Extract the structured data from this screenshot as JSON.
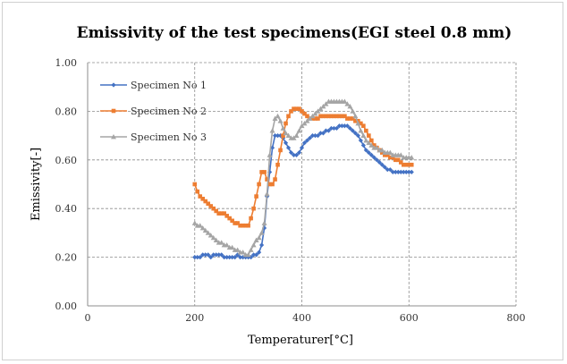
{
  "chart_data": {
    "type": "line",
    "title": "Emissivity of the test specimens(EGI steel 0.8 mm)",
    "xlabel": "Temperaturer[°C]",
    "ylabel": "Emissivity[-]",
    "xlim": [
      0,
      800
    ],
    "ylim": [
      0.0,
      1.0
    ],
    "x_ticks": [
      "0",
      "200",
      "400",
      "600",
      "800"
    ],
    "y_ticks": [
      "0.00",
      "0.20",
      "0.40",
      "0.60",
      "0.80",
      "1.00"
    ],
    "grid": true,
    "legend_position": "top-left",
    "series": [
      {
        "name": "Specimen No 1",
        "color": "#4472C4",
        "marker": "diamond",
        "x": [
          200,
          205,
          210,
          215,
          220,
          225,
          230,
          235,
          240,
          245,
          250,
          255,
          260,
          265,
          270,
          275,
          280,
          285,
          290,
          295,
          300,
          305,
          310,
          315,
          320,
          325,
          330,
          335,
          340,
          345,
          350,
          355,
          360,
          365,
          370,
          375,
          380,
          385,
          390,
          395,
          400,
          405,
          410,
          415,
          420,
          425,
          430,
          435,
          440,
          445,
          450,
          455,
          460,
          465,
          470,
          475,
          480,
          485,
          490,
          495,
          500,
          505,
          510,
          515,
          520,
          525,
          530,
          535,
          540,
          545,
          550,
          555,
          560,
          565,
          570,
          575,
          580,
          585,
          590,
          595,
          600,
          605
        ],
        "y": [
          0.2,
          0.2,
          0.2,
          0.21,
          0.21,
          0.21,
          0.2,
          0.21,
          0.21,
          0.21,
          0.21,
          0.2,
          0.2,
          0.2,
          0.2,
          0.2,
          0.21,
          0.2,
          0.2,
          0.2,
          0.2,
          0.2,
          0.21,
          0.21,
          0.22,
          0.25,
          0.32,
          0.45,
          0.55,
          0.65,
          0.7,
          0.7,
          0.7,
          0.69,
          0.67,
          0.65,
          0.63,
          0.62,
          0.62,
          0.63,
          0.65,
          0.67,
          0.68,
          0.69,
          0.7,
          0.7,
          0.7,
          0.71,
          0.71,
          0.72,
          0.72,
          0.73,
          0.73,
          0.73,
          0.74,
          0.74,
          0.74,
          0.74,
          0.73,
          0.72,
          0.71,
          0.7,
          0.68,
          0.66,
          0.64,
          0.63,
          0.62,
          0.61,
          0.6,
          0.59,
          0.58,
          0.57,
          0.56,
          0.56,
          0.55,
          0.55,
          0.55,
          0.55,
          0.55,
          0.55,
          0.55,
          0.55
        ],
        "_note": ""
      },
      {
        "name": "Specimen No 2",
        "color": "#ED7D31",
        "marker": "square",
        "x": [
          200,
          205,
          210,
          215,
          220,
          225,
          230,
          235,
          240,
          245,
          250,
          255,
          260,
          265,
          270,
          275,
          280,
          285,
          290,
          295,
          300,
          305,
          310,
          315,
          320,
          325,
          330,
          335,
          340,
          345,
          350,
          355,
          360,
          365,
          370,
          375,
          380,
          385,
          390,
          395,
          400,
          405,
          410,
          415,
          420,
          425,
          430,
          435,
          440,
          445,
          450,
          455,
          460,
          465,
          470,
          475,
          480,
          485,
          490,
          495,
          500,
          505,
          510,
          515,
          520,
          525,
          530,
          535,
          540,
          545,
          550,
          555,
          560,
          565,
          570,
          575,
          580,
          585,
          590,
          595,
          600,
          605
        ],
        "y": [
          0.5,
          0.47,
          0.45,
          0.44,
          0.43,
          0.42,
          0.41,
          0.4,
          0.39,
          0.38,
          0.38,
          0.38,
          0.37,
          0.36,
          0.35,
          0.34,
          0.34,
          0.33,
          0.33,
          0.33,
          0.33,
          0.36,
          0.4,
          0.45,
          0.5,
          0.55,
          0.55,
          0.52,
          0.5,
          0.5,
          0.52,
          0.58,
          0.64,
          0.7,
          0.75,
          0.78,
          0.8,
          0.81,
          0.81,
          0.81,
          0.8,
          0.79,
          0.78,
          0.77,
          0.77,
          0.77,
          0.77,
          0.78,
          0.78,
          0.78,
          0.78,
          0.78,
          0.78,
          0.78,
          0.78,
          0.78,
          0.78,
          0.77,
          0.77,
          0.77,
          0.76,
          0.76,
          0.75,
          0.74,
          0.72,
          0.7,
          0.68,
          0.66,
          0.65,
          0.64,
          0.63,
          0.62,
          0.62,
          0.61,
          0.61,
          0.6,
          0.6,
          0.59,
          0.58,
          0.58,
          0.58,
          0.58
        ],
        "_note": ""
      },
      {
        "name": "Specimen No 3",
        "color": "#A5A5A5",
        "marker": "triangle",
        "x": [
          200,
          205,
          210,
          215,
          220,
          225,
          230,
          235,
          240,
          245,
          250,
          255,
          260,
          265,
          270,
          275,
          280,
          285,
          290,
          295,
          300,
          305,
          310,
          315,
          320,
          325,
          330,
          335,
          340,
          345,
          350,
          355,
          360,
          365,
          370,
          375,
          380,
          385,
          390,
          395,
          400,
          405,
          410,
          415,
          420,
          425,
          430,
          435,
          440,
          445,
          450,
          455,
          460,
          465,
          470,
          475,
          480,
          485,
          490,
          495,
          500,
          505,
          510,
          515,
          520,
          525,
          530,
          535,
          540,
          545,
          550,
          555,
          560,
          565,
          570,
          575,
          580,
          585,
          590,
          595,
          600,
          605
        ],
        "y": [
          0.34,
          0.33,
          0.33,
          0.32,
          0.31,
          0.3,
          0.29,
          0.28,
          0.27,
          0.26,
          0.26,
          0.25,
          0.25,
          0.24,
          0.24,
          0.23,
          0.23,
          0.22,
          0.22,
          0.21,
          0.21,
          0.23,
          0.25,
          0.27,
          0.28,
          0.3,
          0.34,
          0.46,
          0.62,
          0.72,
          0.77,
          0.78,
          0.76,
          0.73,
          0.71,
          0.7,
          0.69,
          0.69,
          0.7,
          0.72,
          0.74,
          0.75,
          0.76,
          0.77,
          0.78,
          0.79,
          0.8,
          0.81,
          0.82,
          0.83,
          0.84,
          0.84,
          0.84,
          0.84,
          0.84,
          0.84,
          0.84,
          0.83,
          0.82,
          0.8,
          0.78,
          0.75,
          0.72,
          0.7,
          0.68,
          0.67,
          0.66,
          0.65,
          0.65,
          0.64,
          0.64,
          0.63,
          0.63,
          0.63,
          0.62,
          0.62,
          0.62,
          0.62,
          0.61,
          0.61,
          0.61,
          0.61
        ],
        "_note": ""
      }
    ]
  }
}
